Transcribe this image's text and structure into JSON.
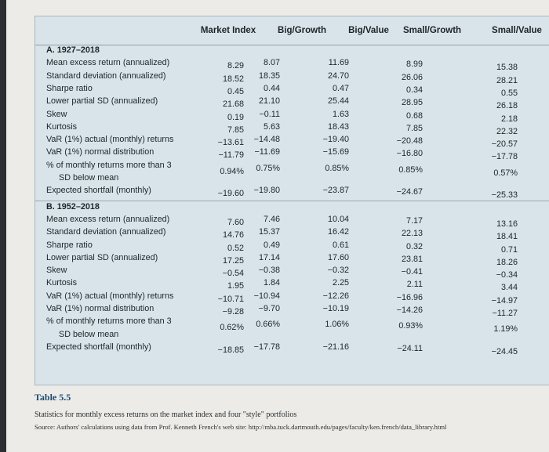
{
  "table": {
    "columns": [
      "Market Index",
      "Big/Growth",
      "Big/Value",
      "Small/Growth",
      "Small/Value"
    ],
    "sections": [
      {
        "title": "A. 1927–2018",
        "rows": [
          {
            "label": "Mean excess return (annualized)",
            "values": [
              "8.29",
              "8.07",
              "11.69",
              "8.99",
              "15.38"
            ]
          },
          {
            "label": "Standard deviation (annualized)",
            "values": [
              "18.52",
              "18.35",
              "24.70",
              "26.06",
              "28.21"
            ]
          },
          {
            "label": "Sharpe ratio",
            "values": [
              "0.45",
              "0.44",
              "0.47",
              "0.34",
              "0.55"
            ]
          },
          {
            "label": "Lower partial SD (annualized)",
            "values": [
              "21.68",
              "21.10",
              "25.44",
              "28.95",
              "26.18"
            ]
          },
          {
            "label": "Skew",
            "values": [
              "0.19",
              "−0.11",
              "1.63",
              "0.68",
              "2.18"
            ]
          },
          {
            "label": "Kurtosis",
            "values": [
              "7.85",
              "5.63",
              "18.43",
              "7.85",
              "22.32"
            ]
          },
          {
            "label": "VaR (1%) actual (monthly) returns",
            "values": [
              "−13.61",
              "−14.48",
              "−19.40",
              "−20.48",
              "−20.57"
            ]
          },
          {
            "label": "VaR (1%) normal distribution",
            "values": [
              "−11.79",
              "−11.69",
              "−15.69",
              "−16.80",
              "−17.78"
            ]
          },
          {
            "label": "% of monthly returns more than 3",
            "label2": "SD below mean",
            "values": [
              "0.94%",
              "0.75%",
              "0.85%",
              "0.85%",
              "0.57%"
            ]
          },
          {
            "label": "Expected shortfall (monthly)",
            "values": [
              "−19.60",
              "−19.80",
              "−23.87",
              "−24.67",
              "−25.33"
            ]
          }
        ]
      },
      {
        "title": "B. 1952–2018",
        "rows": [
          {
            "label": "Mean excess return (annualized)",
            "values": [
              "7.60",
              "7.46",
              "10.04",
              "7.17",
              "13.16"
            ]
          },
          {
            "label": "Standard deviation (annualized)",
            "values": [
              "14.76",
              "15.37",
              "16.42",
              "22.13",
              "18.41"
            ]
          },
          {
            "label": "Sharpe ratio",
            "values": [
              "0.52",
              "0.49",
              "0.61",
              "0.32",
              "0.71"
            ]
          },
          {
            "label": "Lower partial SD (annualized)",
            "values": [
              "17.25",
              "17.14",
              "17.60",
              "23.81",
              "18.26"
            ]
          },
          {
            "label": "Skew",
            "values": [
              "−0.54",
              "−0.38",
              "−0.32",
              "−0.41",
              "−0.34"
            ]
          },
          {
            "label": "Kurtosis",
            "values": [
              "1.95",
              "1.84",
              "2.25",
              "2.11",
              "3.44"
            ]
          },
          {
            "label": "VaR (1%) actual (monthly) returns",
            "values": [
              "−10.71",
              "−10.94",
              "−12.26",
              "−16.96",
              "−14.97"
            ]
          },
          {
            "label": "VaR (1%) normal distribution",
            "values": [
              "−9.28",
              "−9.70",
              "−10.19",
              "−14.26",
              "−11.27"
            ]
          },
          {
            "label": "% of monthly returns more than 3",
            "label2": "SD below mean",
            "values": [
              "0.62%",
              "0.66%",
              "1.06%",
              "0.93%",
              "1.19%"
            ]
          },
          {
            "label": "Expected shortfall (monthly)",
            "values": [
              "−18.85",
              "−17.78",
              "−21.16",
              "−24.11",
              "−24.45"
            ]
          }
        ]
      }
    ]
  },
  "caption": {
    "title": "Table 5.5",
    "description": "Statistics for monthly excess returns on the market index and four \"style\" portfolios",
    "source": "Source: Authors' calculations using data from Prof. Kenneth French's web site: http://mba.tuck.dartmouth.edu/pages/faculty/ken.french/data_library.html"
  }
}
